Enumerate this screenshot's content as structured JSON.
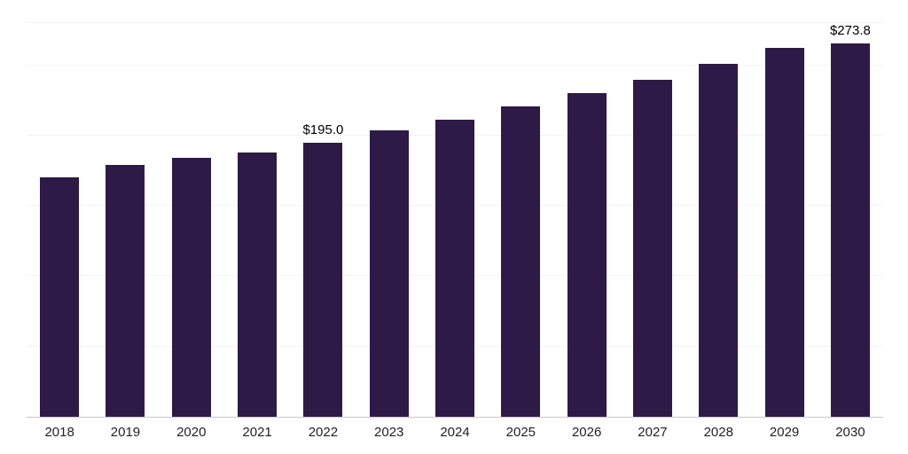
{
  "chart_data": {
    "type": "bar",
    "title": "",
    "xlabel": "",
    "ylabel": "",
    "categories": [
      "2018",
      "2019",
      "2020",
      "2021",
      "2022",
      "2023",
      "2024",
      "2025",
      "2026",
      "2027",
      "2028",
      "2029",
      "2030"
    ],
    "values": [
      170.0,
      179.0,
      184.0,
      188.0,
      195.0,
      203.5,
      211.5,
      221.0,
      230.0,
      239.5,
      251.0,
      262.5,
      273.8
    ],
    "data_labels": {
      "2022": "$195.0",
      "2030": "$273.8"
    },
    "ylim": [
      0,
      280
    ],
    "grid": true,
    "gridline_values": [
      50,
      100,
      150,
      200,
      250,
      280
    ],
    "legend": "none",
    "bar_color": "#2e1a47",
    "gridline_color": "#f3f3f3",
    "axis_line_color": "#c9c9c9",
    "tick_label_color": "#222222",
    "data_label_color": "#000000"
  }
}
